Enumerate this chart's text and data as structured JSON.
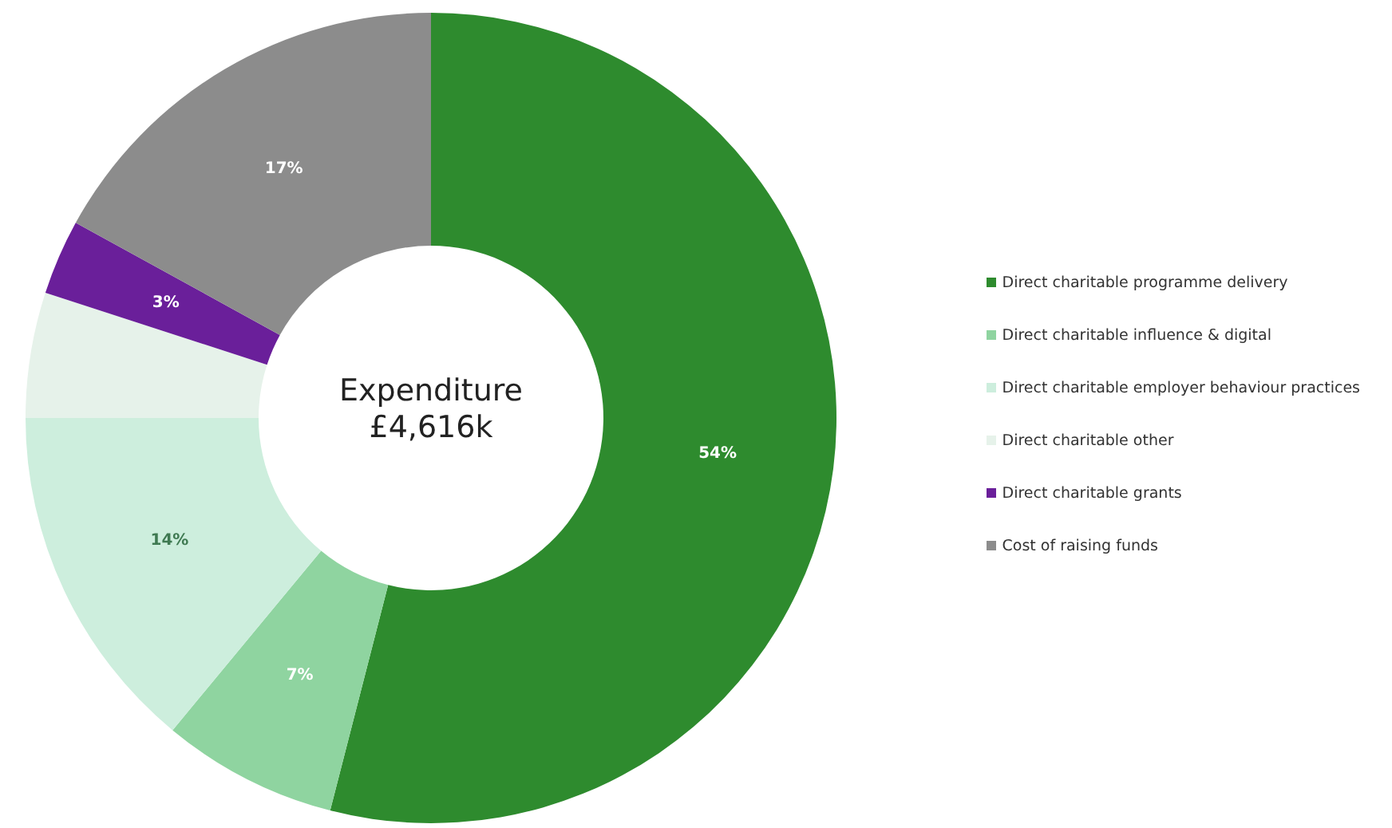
{
  "chart_data": {
    "type": "donut",
    "categories": [
      "Direct charitable programme delivery",
      "Direct charitable influence & digital",
      "Direct charitable employer behaviour practices",
      "Direct charitable other",
      "Direct charitable grants",
      "Cost of raising funds"
    ],
    "values": [
      54,
      7,
      14,
      5,
      3,
      17
    ],
    "colors": [
      "#2e8b2e",
      "#8fd4a0",
      "#cdeedd",
      "#e6f2ea",
      "#6a1f9a",
      "#8c8c8c"
    ],
    "value_labels": [
      "54%",
      "7%",
      "14%",
      null,
      "3%",
      "17%"
    ],
    "annotations": [
      "Expenditure",
      "£4,616k"
    ],
    "legend": "right"
  }
}
